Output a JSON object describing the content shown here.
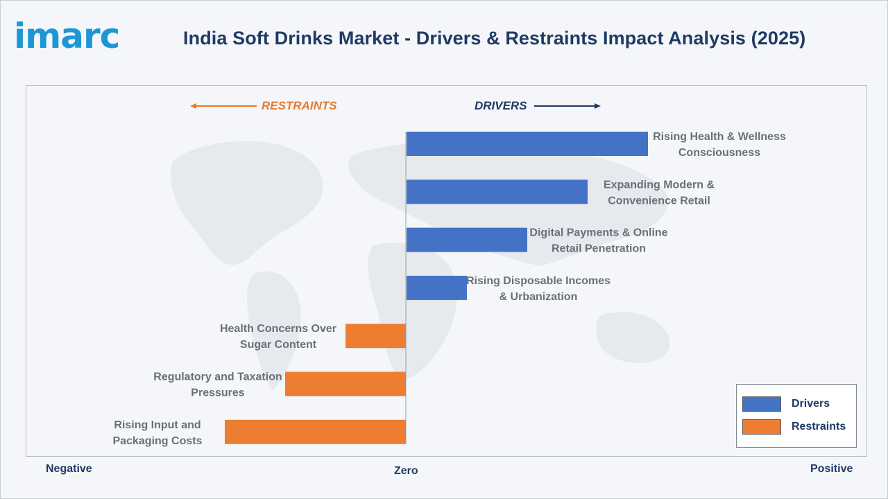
{
  "header": {
    "logo_text": "imarc",
    "title": "India Soft Drinks Market - Drivers & Restraints Impact Analysis (2025)"
  },
  "direction_labels": {
    "restraints": "RESTRAINTS",
    "drivers": "DRIVERS"
  },
  "axis_labels": {
    "negative": "Negative",
    "zero": "Zero",
    "positive": "Positive"
  },
  "colors": {
    "drivers": "#4472c4",
    "restraints": "#ed7d31",
    "title": "#1f3a64",
    "label_text": "#6b6f76"
  },
  "legend": {
    "items": [
      {
        "label": "Drivers",
        "color": "#4472c4"
      },
      {
        "label": "Restraints",
        "color": "#ed7d31"
      }
    ]
  },
  "chart_data": {
    "type": "bar",
    "orientation": "horizontal",
    "title": "India Soft Drinks Market - Drivers & Restraints Impact Analysis (2025)",
    "xlim": [
      -3,
      4
    ],
    "grid": false,
    "legend_position": "bottom-right",
    "categories": [
      "Rising Health & Wellness Consciousness",
      "Expanding Modern & Convenience Retail",
      "Digital Payments & Online Retail Penetration",
      "Rising Disposable Incomes & Urbanization",
      "Health Concerns Over Sugar Content",
      "Regulatory and Taxation Pressures",
      "Rising Input and Packaging Costs"
    ],
    "label_lines": [
      [
        "Rising Health & Wellness",
        "Consciousness"
      ],
      [
        "Expanding Modern &",
        "Convenience Retail"
      ],
      [
        "Digital Payments & Online",
        "Retail Penetration"
      ],
      [
        "Rising Disposable Incomes",
        "& Urbanization"
      ],
      [
        "Health Concerns Over",
        "Sugar Content"
      ],
      [
        "Regulatory and Taxation",
        "Pressures"
      ],
      [
        "Rising Input and",
        "Packaging Costs"
      ]
    ],
    "series": [
      {
        "name": "Drivers",
        "values": [
          4,
          3,
          2,
          1,
          0,
          0,
          0
        ]
      },
      {
        "name": "Restraints",
        "values": [
          0,
          0,
          0,
          0,
          -1,
          -2,
          -3
        ]
      }
    ]
  }
}
